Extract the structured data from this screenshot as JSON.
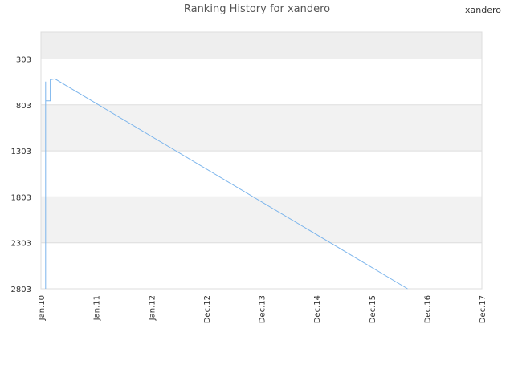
{
  "chart_data": {
    "type": "line",
    "title": "Ranking History for xandero",
    "xlabel": "",
    "ylabel": "",
    "legend_position": "top-right",
    "x_ticks": [
      "Jan.10",
      "Jan.11",
      "Jan.12",
      "Dec.12",
      "Dec.13",
      "Dec.14",
      "Dec.15",
      "Dec.16",
      "Dec.17"
    ],
    "y_ticks": [
      303,
      803,
      1303,
      1803,
      2303,
      2803
    ],
    "ylim": [
      2803,
      11
    ],
    "y_inverted": true,
    "series": [
      {
        "name": "xandero",
        "color": "#7cb5ec",
        "x": [
          "Feb.10",
          "Feb.10",
          "Feb.10",
          "Feb.10",
          "Feb.10",
          "Mar.10",
          "Mar.10",
          "Apr.10",
          "Aug.16"
        ],
        "y": [
          2803,
          800,
          550,
          860,
          760,
          760,
          530,
          520,
          2803
        ]
      }
    ]
  },
  "colors": {
    "band_shaded": "#f2f2f2",
    "band_top": "#eeeeee",
    "grid": "#dddddd",
    "line": "#7cb5ec"
  }
}
